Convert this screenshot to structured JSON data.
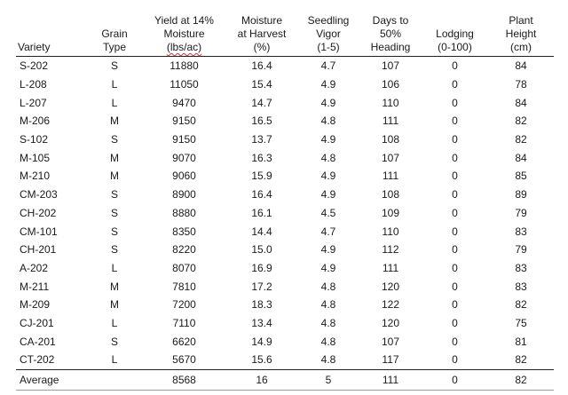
{
  "table": {
    "headers": {
      "variety": [
        "Variety"
      ],
      "grain_type": [
        "Grain",
        "Type"
      ],
      "yield": [
        "Yield at 14%",
        "Moisture",
        "(lbs/ac)"
      ],
      "moisture": [
        "Moisture",
        "at Harvest",
        "(%)"
      ],
      "vigor": [
        "Seedling",
        "Vigor",
        "(1-5)"
      ],
      "days": [
        "Days to",
        "50%",
        "Heading"
      ],
      "lodging": [
        "Lodging",
        "(0-100)"
      ],
      "height": [
        "Plant",
        "Height",
        "(cm)"
      ]
    },
    "rows": [
      {
        "variety": "S-202",
        "grain_type": "S",
        "yield": "11880",
        "moisture": "16.4",
        "vigor": "4.7",
        "days": "107",
        "lodging": "0",
        "height": "84"
      },
      {
        "variety": "L-208",
        "grain_type": "L",
        "yield": "11050",
        "moisture": "15.4",
        "vigor": "4.9",
        "days": "106",
        "lodging": "0",
        "height": "78"
      },
      {
        "variety": "L-207",
        "grain_type": "L",
        "yield": "9470",
        "moisture": "14.7",
        "vigor": "4.9",
        "days": "110",
        "lodging": "0",
        "height": "84"
      },
      {
        "variety": "M-206",
        "grain_type": "M",
        "yield": "9150",
        "moisture": "16.5",
        "vigor": "4.8",
        "days": "111",
        "lodging": "0",
        "height": "82"
      },
      {
        "variety": "S-102",
        "grain_type": "S",
        "yield": "9150",
        "moisture": "13.7",
        "vigor": "4.9",
        "days": "108",
        "lodging": "0",
        "height": "82"
      },
      {
        "variety": "M-105",
        "grain_type": "M",
        "yield": "9070",
        "moisture": "16.3",
        "vigor": "4.8",
        "days": "107",
        "lodging": "0",
        "height": "84"
      },
      {
        "variety": "M-210",
        "grain_type": "M",
        "yield": "9060",
        "moisture": "15.9",
        "vigor": "4.9",
        "days": "111",
        "lodging": "0",
        "height": "85"
      },
      {
        "variety": "CM-203",
        "grain_type": "S",
        "yield": "8900",
        "moisture": "16.4",
        "vigor": "4.9",
        "days": "108",
        "lodging": "0",
        "height": "89"
      },
      {
        "variety": "CH-202",
        "grain_type": "S",
        "yield": "8880",
        "moisture": "16.1",
        "vigor": "4.5",
        "days": "109",
        "lodging": "0",
        "height": "79"
      },
      {
        "variety": "CM-101",
        "grain_type": "S",
        "yield": "8350",
        "moisture": "14.4",
        "vigor": "4.7",
        "days": "110",
        "lodging": "0",
        "height": "83"
      },
      {
        "variety": "CH-201",
        "grain_type": "S",
        "yield": "8220",
        "moisture": "15.0",
        "vigor": "4.9",
        "days": "112",
        "lodging": "0",
        "height": "79"
      },
      {
        "variety": "A-202",
        "grain_type": "L",
        "yield": "8070",
        "moisture": "16.9",
        "vigor": "4.9",
        "days": "111",
        "lodging": "0",
        "height": "83"
      },
      {
        "variety": "M-211",
        "grain_type": "M",
        "yield": "7810",
        "moisture": "17.2",
        "vigor": "4.8",
        "days": "120",
        "lodging": "0",
        "height": "83"
      },
      {
        "variety": "M-209",
        "grain_type": "M",
        "yield": "7200",
        "moisture": "18.3",
        "vigor": "4.8",
        "days": "122",
        "lodging": "0",
        "height": "82"
      },
      {
        "variety": "CJ-201",
        "grain_type": "L",
        "yield": "7110",
        "moisture": "13.4",
        "vigor": "4.8",
        "days": "120",
        "lodging": "0",
        "height": "75"
      },
      {
        "variety": "CA-201",
        "grain_type": "S",
        "yield": "6620",
        "moisture": "14.9",
        "vigor": "4.8",
        "days": "107",
        "lodging": "0",
        "height": "81"
      },
      {
        "variety": "CT-202",
        "grain_type": "L",
        "yield": "5670",
        "moisture": "15.6",
        "vigor": "4.8",
        "days": "117",
        "lodging": "0",
        "height": "82"
      }
    ],
    "average": {
      "variety": "Average",
      "grain_type": "",
      "yield": "8568",
      "moisture": "16",
      "vigor": "5",
      "days": "111",
      "lodging": "0",
      "height": "82"
    }
  }
}
